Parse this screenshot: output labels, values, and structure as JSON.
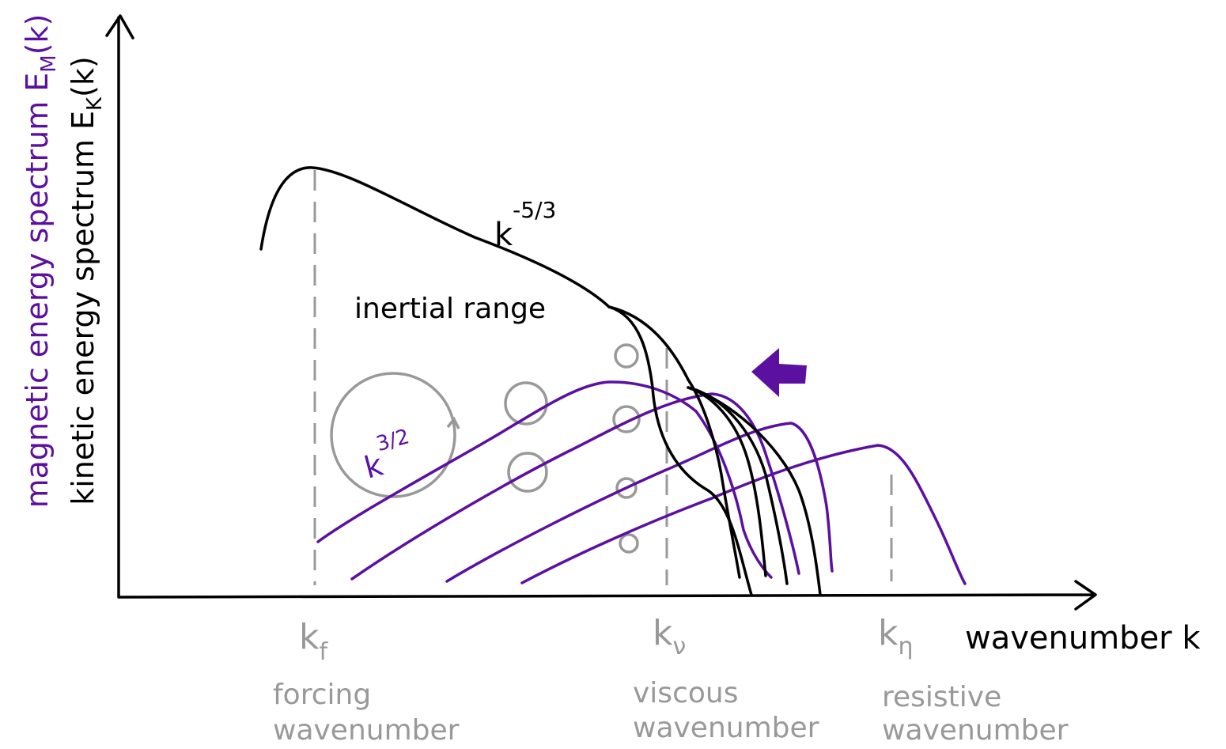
{
  "axes": {
    "y_label_magnetic": {
      "text": "magnetic energy spectrum E",
      "sub": "M",
      "end": "(k)"
    },
    "y_label_kinetic": {
      "text": "kinetic energy spectrum E",
      "sub": "K",
      "end": "(k)"
    },
    "x_label": "wavenumber k"
  },
  "annotations": {
    "kinetic_slope": {
      "base": "k",
      "exp": "-5/3"
    },
    "inertial_range": "inertial range",
    "magnetic_slope": {
      "base": "k",
      "exp": "3/2"
    }
  },
  "markers": [
    {
      "symbol": "k",
      "sub": "f",
      "lines": [
        "forcing",
        "wavenumber"
      ]
    },
    {
      "symbol": "k",
      "sub": "ν",
      "lines": [
        "viscous",
        "wavenumber"
      ]
    },
    {
      "symbol": "k",
      "sub": "η",
      "lines": [
        "resistive",
        "wavenumber"
      ]
    }
  ]
}
